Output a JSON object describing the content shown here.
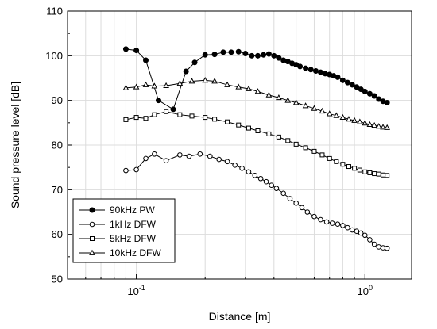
{
  "chart_data": {
    "type": "line",
    "xlabel": "Distance [m]",
    "ylabel": "Sound pressure level [dB]",
    "x_scale": "log",
    "xlim": [
      0.05,
      1.6
    ],
    "ylim": [
      50,
      110
    ],
    "x_ticks": [
      {
        "value": 0.1,
        "base": "10",
        "exp": "-1"
      },
      {
        "value": 1.0,
        "label": "10",
        "exp": "0"
      }
    ],
    "y_ticks": [
      50,
      60,
      70,
      80,
      90,
      100,
      110
    ],
    "grid": true,
    "legend_position": "bottom-left",
    "series": [
      {
        "name": "90kHz PW",
        "marker": "filled-circle",
        "x": [
          0.09,
          0.1,
          0.11,
          0.125,
          0.145,
          0.165,
          0.18,
          0.2,
          0.22,
          0.24,
          0.26,
          0.28,
          0.3,
          0.32,
          0.34,
          0.36,
          0.38,
          0.4,
          0.42,
          0.44,
          0.46,
          0.48,
          0.5,
          0.52,
          0.55,
          0.58,
          0.61,
          0.64,
          0.67,
          0.7,
          0.73,
          0.76,
          0.8,
          0.84,
          0.88,
          0.92,
          0.96,
          1.0,
          1.05,
          1.1,
          1.15,
          1.2,
          1.25
        ],
        "y": [
          101.5,
          101.2,
          99,
          90,
          88,
          96.5,
          98.5,
          100.2,
          100.3,
          100.8,
          100.8,
          100.9,
          100.5,
          100.0,
          100.0,
          100.2,
          100.4,
          100.0,
          99.5,
          99.0,
          98.7,
          98.3,
          98.0,
          97.6,
          97.2,
          96.9,
          96.6,
          96.3,
          96.0,
          95.8,
          95.5,
          95.2,
          94.5,
          94.0,
          93.5,
          93.0,
          92.5,
          92.0,
          91.5,
          91.0,
          90.3,
          89.8,
          89.5
        ]
      },
      {
        "name": "1kHz DFW",
        "marker": "open-circle",
        "x": [
          0.09,
          0.1,
          0.11,
          0.12,
          0.135,
          0.155,
          0.17,
          0.19,
          0.21,
          0.23,
          0.25,
          0.27,
          0.29,
          0.31,
          0.33,
          0.35,
          0.37,
          0.39,
          0.41,
          0.44,
          0.47,
          0.5,
          0.53,
          0.56,
          0.6,
          0.64,
          0.68,
          0.72,
          0.76,
          0.8,
          0.84,
          0.88,
          0.92,
          0.96,
          1.0,
          1.05,
          1.1,
          1.15,
          1.2,
          1.25
        ],
        "y": [
          74.3,
          74.5,
          77,
          78,
          76.5,
          77.8,
          77.5,
          78,
          77.5,
          76.8,
          76.3,
          75.5,
          74.8,
          74,
          73.2,
          72.5,
          71.8,
          71,
          70.3,
          69.2,
          68,
          67,
          66,
          65,
          64,
          63.3,
          62.8,
          62.5,
          62.3,
          62,
          61.5,
          61,
          60.7,
          60.3,
          59.8,
          58.8,
          57.8,
          57.2,
          57,
          56.9
        ]
      },
      {
        "name": "5kHz DFW",
        "marker": "open-square",
        "x": [
          0.09,
          0.1,
          0.11,
          0.12,
          0.135,
          0.155,
          0.175,
          0.2,
          0.22,
          0.25,
          0.28,
          0.31,
          0.34,
          0.38,
          0.42,
          0.46,
          0.5,
          0.55,
          0.6,
          0.65,
          0.7,
          0.75,
          0.8,
          0.85,
          0.9,
          0.95,
          1.0,
          1.05,
          1.1,
          1.15,
          1.2,
          1.25
        ],
        "y": [
          85.7,
          86.2,
          86,
          86.8,
          87.5,
          86.8,
          86.5,
          86.2,
          85.8,
          85.2,
          84.5,
          83.8,
          83.2,
          82.5,
          81.8,
          81.0,
          80.2,
          79.4,
          78.6,
          77.8,
          77.0,
          76.3,
          75.7,
          75.2,
          74.8,
          74.4,
          74.0,
          73.8,
          73.6,
          73.5,
          73.3,
          73.2
        ]
      },
      {
        "name": "10kHz DFW",
        "marker": "open-triangle",
        "x": [
          0.09,
          0.1,
          0.11,
          0.12,
          0.135,
          0.155,
          0.175,
          0.2,
          0.22,
          0.25,
          0.28,
          0.31,
          0.34,
          0.38,
          0.42,
          0.46,
          0.5,
          0.55,
          0.6,
          0.65,
          0.7,
          0.75,
          0.8,
          0.85,
          0.9,
          0.95,
          1.0,
          1.05,
          1.1,
          1.15,
          1.2,
          1.25
        ],
        "y": [
          92.8,
          93.0,
          93.5,
          93.2,
          93.3,
          93.8,
          94.3,
          94.5,
          94.3,
          93.5,
          93.0,
          92.6,
          92.0,
          91.2,
          90.6,
          90.0,
          89.5,
          88.8,
          88.2,
          87.6,
          87.0,
          86.6,
          86.2,
          85.8,
          85.5,
          85.2,
          84.9,
          84.6,
          84.4,
          84.2,
          84.0,
          83.9
        ]
      }
    ]
  }
}
